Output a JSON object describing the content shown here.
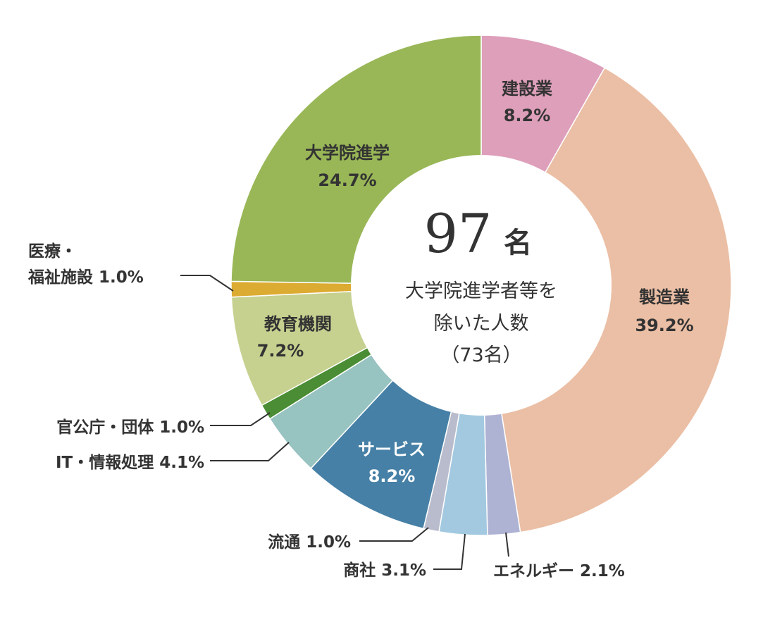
{
  "chart_data": {
    "type": "pie",
    "donut": true,
    "center": {
      "number": "97",
      "unit": "名",
      "lines": [
        "大学院進学者等を",
        "除いた人数",
        "（73名）"
      ]
    },
    "slices": [
      {
        "name": "建設業",
        "value": 8.2,
        "value_label": "8.2%",
        "color": "#de9fba"
      },
      {
        "name": "製造業",
        "value": 39.2,
        "value_label": "39.2%",
        "color": "#ebbfa5"
      },
      {
        "name": "エネルギー",
        "value": 2.1,
        "value_label": "2.1%",
        "color": "#afb3d3"
      },
      {
        "name": "商社",
        "value": 3.1,
        "value_label": "3.1%",
        "color": "#a2c9e0"
      },
      {
        "name": "流通",
        "value": 1.0,
        "value_label": "1.0%",
        "color": "#b8bccd"
      },
      {
        "name": "サービス",
        "value": 8.2,
        "value_label": "8.2%",
        "color": "#4680a6"
      },
      {
        "name": "IT・情報処理",
        "value": 4.1,
        "value_label": "4.1%",
        "color": "#97c3c0"
      },
      {
        "name": "官公庁・団体",
        "value": 1.0,
        "value_label": "1.0%",
        "color": "#4a8d34"
      },
      {
        "name": "教育機関",
        "value": 7.2,
        "value_label": "7.2%",
        "color": "#c6d190"
      },
      {
        "name": "医療・福祉施設",
        "value": 1.0,
        "value_label": "1.0%",
        "color": "#dcab32"
      },
      {
        "name": "大学院進学",
        "value": 24.7,
        "value_label": "24.7%",
        "color": "#99b757"
      }
    ],
    "label_texts": {
      "kensetsu": [
        "建設業",
        "8.2%"
      ],
      "seizo": [
        "製造業",
        "39.2%"
      ],
      "energy": "エネルギー 2.1%",
      "shosha": "商社 3.1%",
      "ryutsu": "流通 1.0%",
      "service": [
        "サービス",
        "8.2%"
      ],
      "it": "IT・情報処理 4.1%",
      "kankocho": "官公庁・団体 1.0%",
      "kyoiku": [
        "教育機関",
        "7.2%"
      ],
      "iryo": [
        "医療・",
        "福祉施設 1.0%"
      ],
      "daigakuin": [
        "大学院進学",
        "24.7%"
      ]
    }
  }
}
